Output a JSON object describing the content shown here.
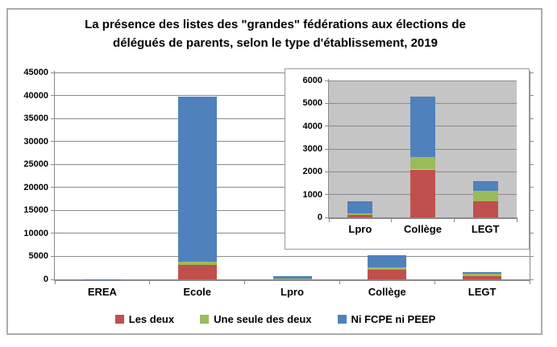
{
  "title": "La présence des listes des \"grandes\" fédérations aux élections de délégués de parents, selon le type d'établissement, 2019",
  "legend": {
    "items": [
      {
        "label": "Les deux",
        "color": "#C0504D"
      },
      {
        "label": "Une seule des deux",
        "color": "#9BBB59"
      },
      {
        "label": "Ni FCPE ni PEEP",
        "color": "#4F81BD"
      }
    ]
  },
  "colors": {
    "red": "#C0504D",
    "green": "#9BBB59",
    "blue": "#4F81BD",
    "gridline": "#8A8A8A",
    "axis": "#8A8A8A",
    "inset_plot_bg": "#C5C5C5",
    "figure_border": "#ACACAC"
  },
  "chart_data": [
    {
      "id": "main",
      "type": "bar",
      "stacked": true,
      "categories": [
        "EREA",
        "Ecole",
        "Lpro",
        "Collège",
        "LEGT"
      ],
      "series": [
        {
          "name": "Les deux",
          "color": "#C0504D",
          "values": [
            30,
            3200,
            120,
            2100,
            710
          ]
        },
        {
          "name": "Une seule des deux",
          "color": "#9BBB59",
          "values": [
            10,
            600,
            60,
            540,
            450
          ]
        },
        {
          "name": "Ni FCPE ni PEEP",
          "color": "#4F81BD",
          "values": [
            40,
            35900,
            520,
            2660,
            440
          ]
        }
      ],
      "ylim": [
        0,
        45000
      ],
      "ytick_step": 5000,
      "ytick_labels": [
        "0",
        "5000",
        "10000",
        "15000",
        "20000",
        "25000",
        "30000",
        "35000",
        "40000",
        "45000"
      ],
      "grid": true,
      "legend_position": "bottom"
    },
    {
      "id": "inset",
      "type": "bar",
      "stacked": true,
      "note": "inset zoom of the three smallest categories",
      "categories": [
        "Lpro",
        "Collège",
        "LEGT"
      ],
      "series": [
        {
          "name": "Les deux",
          "color": "#C0504D",
          "values": [
            120,
            2100,
            710
          ]
        },
        {
          "name": "Une seule des deux",
          "color": "#9BBB59",
          "values": [
            60,
            540,
            450
          ]
        },
        {
          "name": "Ni FCPE ni PEEP",
          "color": "#4F81BD",
          "values": [
            520,
            2660,
            440
          ]
        }
      ],
      "ylim": [
        0,
        6000
      ],
      "ytick_step": 1000,
      "ytick_labels": [
        "0",
        "1000",
        "2000",
        "3000",
        "4000",
        "5000",
        "6000"
      ],
      "grid": true,
      "legend_position": "none"
    }
  ]
}
